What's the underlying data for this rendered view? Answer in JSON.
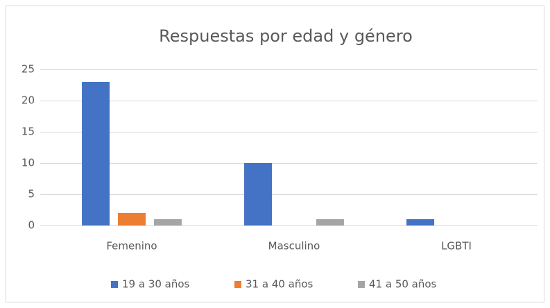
{
  "chart_data": {
    "type": "bar",
    "title": "Respuestas por edad y género",
    "categories": [
      "Femenino",
      "Masculino",
      "LGBTI"
    ],
    "series": [
      {
        "name": "19 a 30 años",
        "color": "#4472c4",
        "values": [
          23,
          10,
          1
        ]
      },
      {
        "name": "31 a 40 años",
        "color": "#ed7d31",
        "values": [
          2,
          0,
          0
        ]
      },
      {
        "name": "41 a 50 años",
        "color": "#a5a5a5",
        "values": [
          1,
          1,
          0
        ]
      }
    ],
    "ylim": [
      0,
      25
    ],
    "yticks": [
      0,
      5,
      10,
      15,
      20,
      25
    ],
    "grid": true,
    "legend": "bottom"
  }
}
